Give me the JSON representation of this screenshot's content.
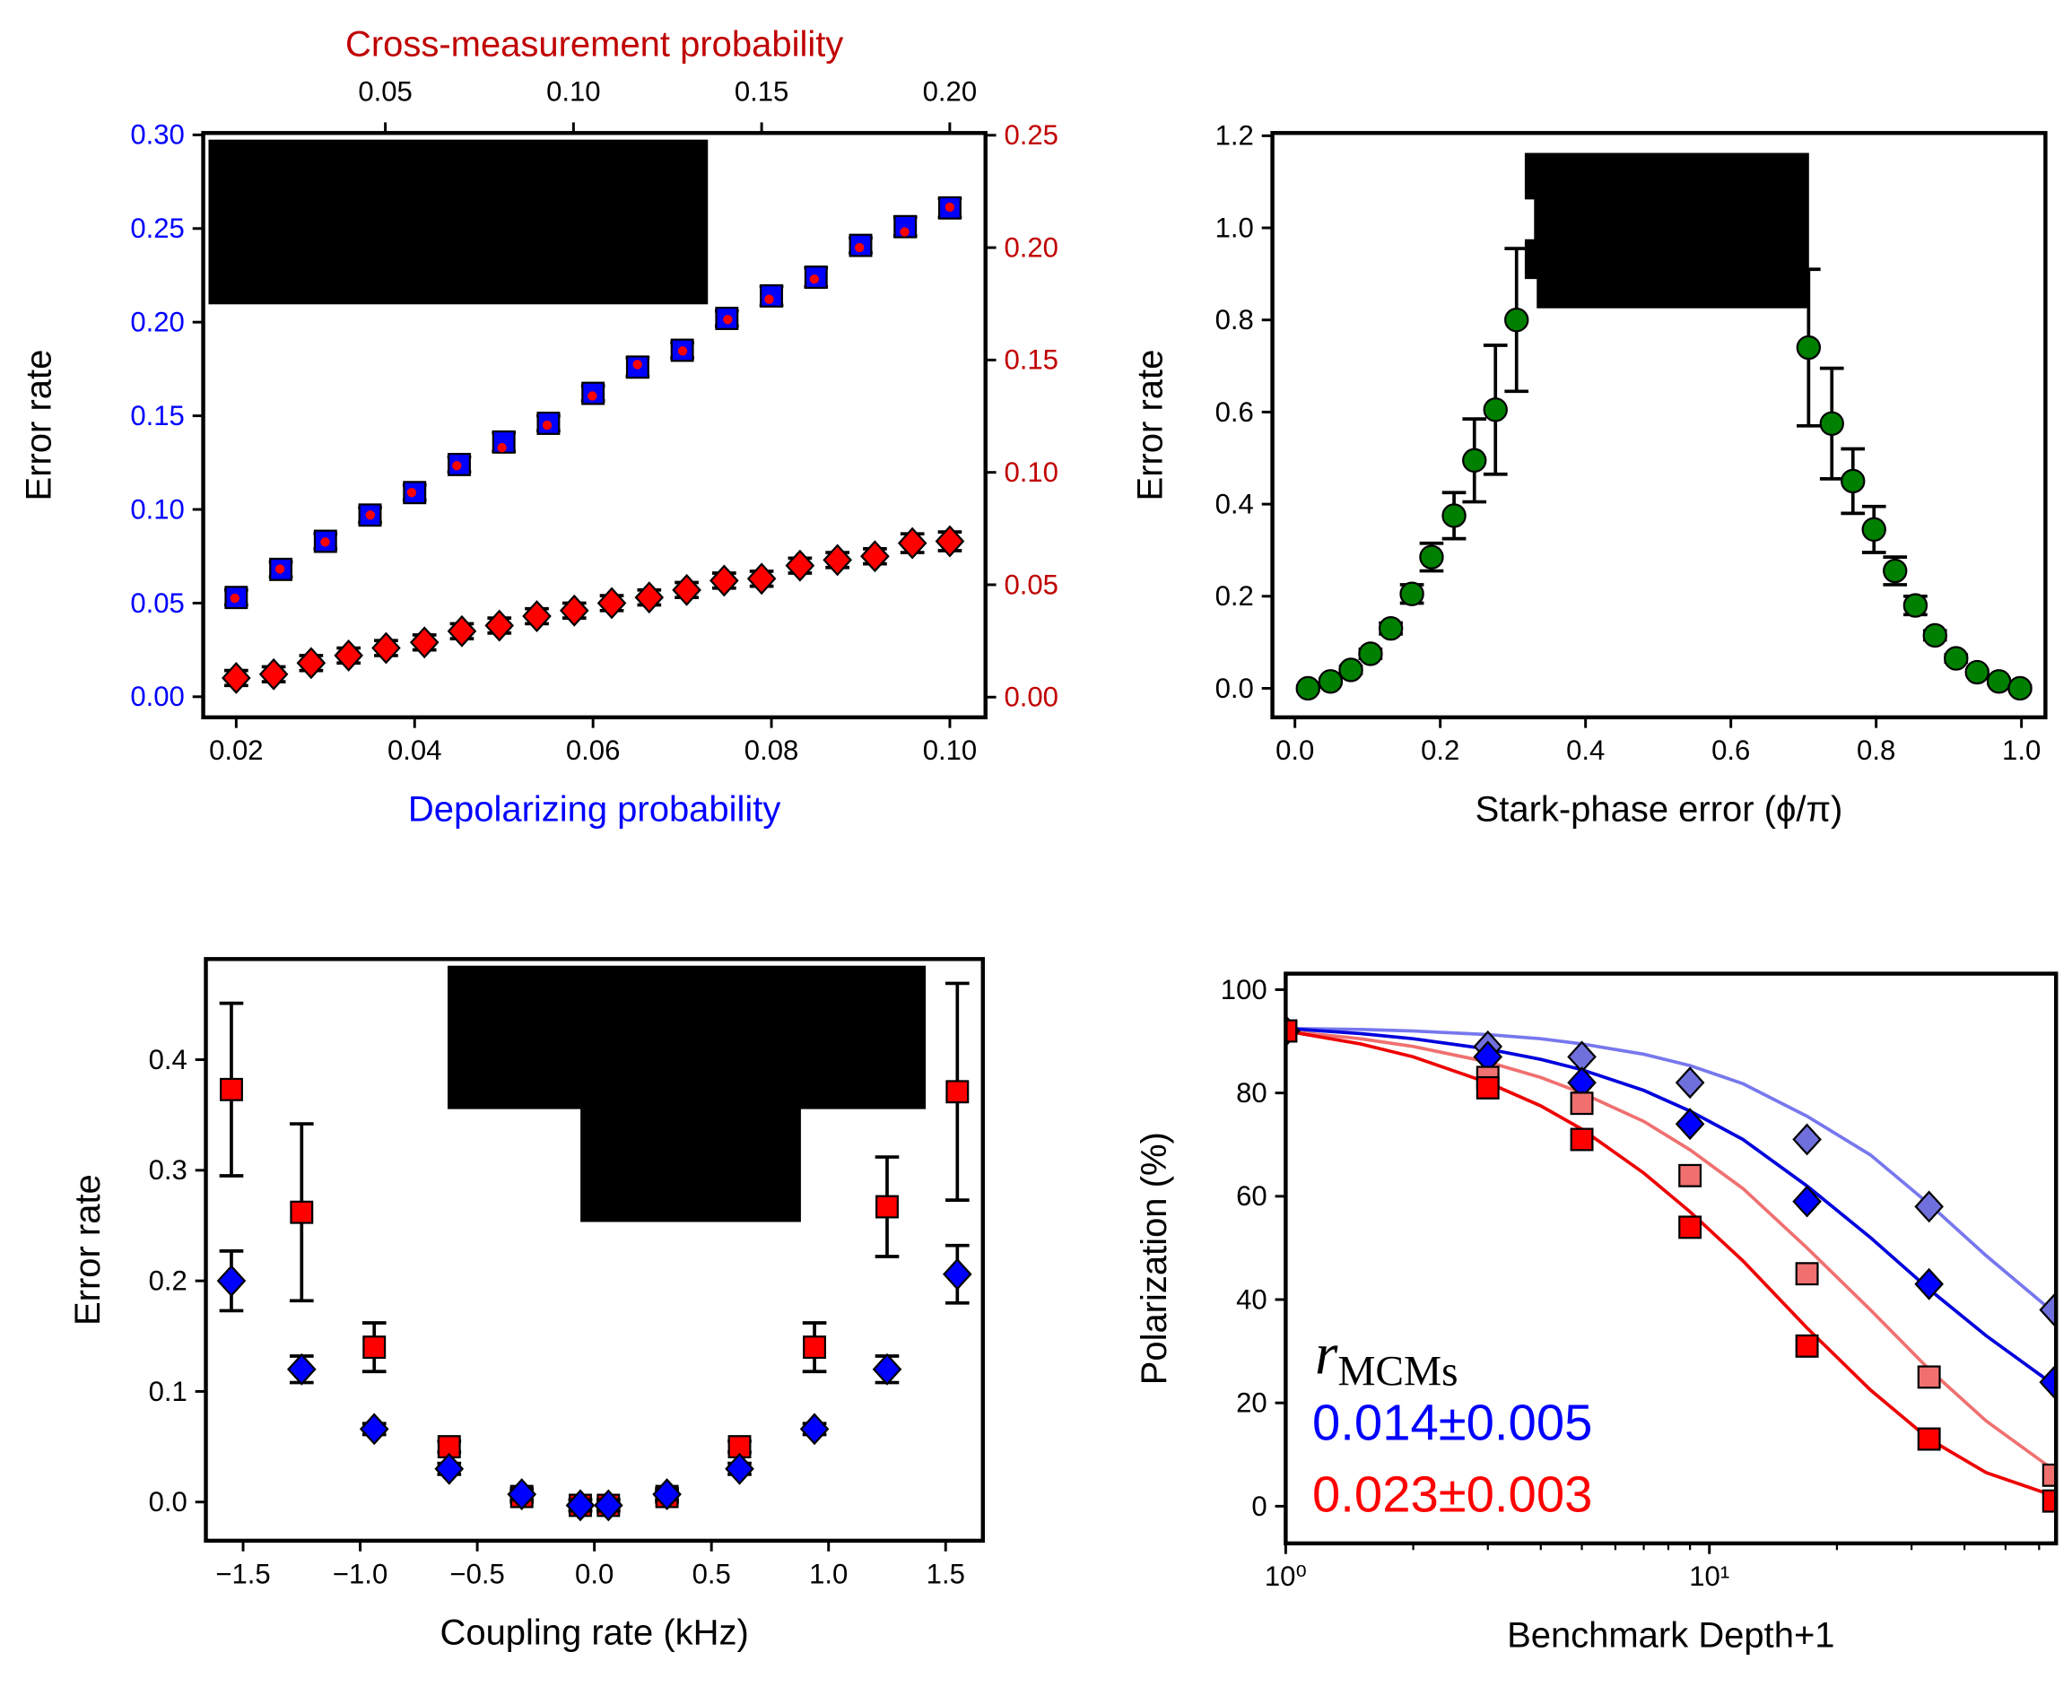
{
  "chart_data": [
    {
      "type": "scatter",
      "xlabel": "Depolarizing probability",
      "xlabel_color": "#0000ff",
      "x2label": "Cross-measurement probability",
      "x2label_color": "#c00000",
      "ylabel": "Error rate",
      "ytick_color": "#0000ff",
      "y2tick_color": "#c00000",
      "xlim": [
        0.0163,
        0.104
      ],
      "xticks": [
        0.02,
        0.04,
        0.06,
        0.08,
        {
          "value": 0.1,
          "label": "0.10"
        }
      ],
      "x2lim": [
        0.0016,
        0.2095
      ],
      "x2ticks": [
        0.05,
        {
          "value": 0.1,
          "label": "0.10"
        },
        0.15,
        {
          "value": 0.2,
          "label": "0.20"
        }
      ],
      "ylim": [
        -0.011,
        0.301
      ],
      "yticks": [
        {
          "value": 0,
          "label": "0.00"
        },
        0.05,
        {
          "value": 0.1,
          "label": "0.10"
        },
        0.15,
        {
          "value": 0.2,
          "label": "0.20"
        },
        0.25,
        {
          "value": 0.3,
          "label": "0.30"
        }
      ],
      "y2lim": [
        -0.009,
        0.251
      ],
      "y2ticks": [
        {
          "value": 0,
          "label": "0.00"
        },
        0.05,
        {
          "value": 0.1,
          "label": "0.10"
        },
        0.15,
        {
          "value": 0.2,
          "label": "0.20"
        },
        0.25
      ],
      "series": [
        {
          "marker": "square",
          "color": "#0000ff",
          "x": [
            0.02,
            0.025,
            0.03,
            0.035,
            0.04,
            0.045,
            0.05,
            0.055,
            0.06,
            0.065,
            0.07,
            0.075,
            0.08,
            0.085,
            0.09,
            0.095,
            0.1
          ],
          "values": [
            0.053,
            0.068,
            0.083,
            0.097,
            0.109,
            0.124,
            0.136,
            0.146,
            0.162,
            0.176,
            0.185,
            0.202,
            0.214,
            0.224,
            0.241,
            0.251,
            0.261
          ],
          "errors": [
            0.004,
            0.004,
            0.004,
            0.004,
            0.004,
            0.004,
            0.005,
            0.004,
            0.004,
            0.005,
            0.004,
            0.004,
            0.005,
            0.005,
            0.004,
            0.005,
            0.005
          ]
        },
        {
          "marker": "dot",
          "color": "#ff0000",
          "xaxis": "x2",
          "axis": "y2",
          "x": [
            0.01,
            0.022,
            0.034,
            0.046,
            0.057,
            0.069,
            0.081,
            0.093,
            0.105,
            0.117,
            0.129,
            0.141,
            0.152,
            0.164,
            0.176,
            0.188,
            0.2
          ],
          "values": [
            0.044,
            0.057,
            0.069,
            0.081,
            0.091,
            0.103,
            0.111,
            0.121,
            0.134,
            0.148,
            0.154,
            0.168,
            0.177,
            0.186,
            0.2,
            0.207,
            0.218
          ]
        },
        {
          "marker": "diamond",
          "color": "#ff0000",
          "x": [
            0.02,
            0.0242,
            0.0284,
            0.0326,
            0.0368,
            0.0411,
            0.0453,
            0.0495,
            0.0537,
            0.0579,
            0.0621,
            0.0663,
            0.0705,
            0.0747,
            0.0789,
            0.0832,
            0.0874,
            0.0916,
            0.0958,
            0.1
          ],
          "values": [
            0.01,
            0.012,
            0.018,
            0.022,
            0.026,
            0.029,
            0.035,
            0.038,
            0.043,
            0.046,
            0.05,
            0.053,
            0.057,
            0.062,
            0.063,
            0.07,
            0.073,
            0.075,
            0.082,
            0.083
          ],
          "errors": [
            0.004,
            0.004,
            0.004,
            0.004,
            0.004,
            0.004,
            0.004,
            0.004,
            0.004,
            0.004,
            0.004,
            0.004,
            0.004,
            0.004,
            0.004,
            0.004,
            0.004,
            0.004,
            0.005,
            0.005
          ]
        }
      ]
    },
    {
      "type": "scatter",
      "xlabel": "Stark-phase error (ϕ/π)",
      "ylabel": "Error rate",
      "xlim": [
        -0.031,
        1.033
      ],
      "xticks": [
        {
          "value": 0,
          "label": "0.0"
        },
        0.2,
        0.4,
        0.6,
        0.8,
        {
          "value": 1,
          "label": "1.0"
        }
      ],
      "ylim": [
        -0.063,
        1.206
      ],
      "yticks": [
        {
          "value": 0,
          "label": "0.0"
        },
        0.2,
        0.4,
        0.6,
        0.8,
        {
          "value": 1,
          "label": "1.0"
        },
        1.2
      ],
      "series": [
        {
          "marker": "circle",
          "color": "#008000",
          "x": [
            0.018,
            0.049,
            0.077,
            0.104,
            0.132,
            0.161,
            0.188,
            0.219,
            0.247,
            0.276,
            0.305,
            0.707,
            0.739,
            0.768,
            0.797,
            0.826,
            0.854,
            0.881,
            0.91,
            0.939,
            0.969,
            0.998
          ],
          "values": [
            0,
            0.015,
            0.04,
            0.075,
            0.13,
            0.205,
            0.285,
            0.375,
            0.495,
            0.605,
            0.8,
            0.74,
            0.575,
            0.45,
            0.345,
            0.255,
            0.18,
            0.115,
            0.065,
            0.035,
            0.015,
            0
          ],
          "errors": [
            0.005,
            0.005,
            0.008,
            0.01,
            0.012,
            0.02,
            0.03,
            0.05,
            0.09,
            0.14,
            0.155,
            0.17,
            0.12,
            0.07,
            0.05,
            0.03,
            0.02,
            0.01,
            0.008,
            0.005,
            0.005,
            0.005
          ]
        }
      ]
    },
    {
      "type": "scatter",
      "xlabel": "Coupling rate (kHz)",
      "ylabel": "Error rate",
      "xlim": [
        -1.659,
        1.659
      ],
      "xticks": [
        {
          "value": -1.5,
          "label": "−1.5"
        },
        {
          "value": -1,
          "label": "−1.0"
        },
        {
          "value": -0.5,
          "label": "−0.5"
        },
        {
          "value": 0,
          "label": "0.0"
        },
        0.5,
        {
          "value": 1,
          "label": "1.0"
        },
        1.5
      ],
      "ylim": [
        -0.035,
        0.491
      ],
      "yticks": [
        {
          "value": 0,
          "label": "0.0"
        },
        0.1,
        0.2,
        0.3,
        0.4
      ],
      "series": [
        {
          "marker": "square",
          "color": "#ff0000",
          "x": [
            -1.55,
            -1.25,
            -0.94,
            -0.62,
            -0.31,
            -0.06,
            0.06,
            0.31,
            0.62,
            0.94,
            1.25,
            1.55
          ],
          "values": [
            0.373,
            0.262,
            0.14,
            0.05,
            0.005,
            -0.003,
            -0.003,
            0.005,
            0.05,
            0.14,
            0.267,
            0.371
          ],
          "errors": [
            0.078,
            0.08,
            0.022,
            0.005,
            0.005,
            0.005,
            0.005,
            0.005,
            0.005,
            0.022,
            0.045,
            0.098
          ]
        },
        {
          "marker": "diamond",
          "color": "#0000ff",
          "x": [
            -1.55,
            -1.25,
            -0.94,
            -0.62,
            -0.31,
            -0.06,
            0.06,
            0.31,
            0.62,
            0.94,
            1.25,
            1.55
          ],
          "values": [
            0.2,
            0.12,
            0.066,
            0.03,
            0.007,
            -0.003,
            -0.003,
            0.007,
            0.03,
            0.066,
            0.12,
            0.206
          ],
          "errors": [
            0.027,
            0.012,
            0.005,
            0.005,
            0.005,
            0.005,
            0.005,
            0.005,
            0.005,
            0.005,
            0.012,
            0.026
          ]
        }
      ]
    },
    {
      "type": "scatter",
      "xlabel": "Benchmark Depth+1",
      "ylabel": "Polarization (%)",
      "xscale": "log",
      "xlim": [
        1,
        65.8
      ],
      "xticks": [
        {
          "value": 1,
          "label": "10⁰"
        },
        {
          "value": 10,
          "label": "10¹"
        }
      ],
      "xminorticks": [
        2,
        3,
        4,
        5,
        6,
        7,
        8,
        9,
        20,
        30,
        40,
        50,
        60
      ],
      "ylim": [
        -7.2,
        103.1
      ],
      "yticks": [
        0,
        20,
        40,
        60,
        80,
        100
      ],
      "annotation_symbol": "r",
      "annotation_subscript": "MCMs",
      "annotations": [
        {
          "text": "0.014±0.005",
          "color": "#0000ff"
        },
        {
          "text": "0.023±0.003",
          "color": "#ff0000"
        }
      ],
      "series": [
        {
          "style": "line",
          "color": "#7777ee",
          "x": [
            1,
            1.5,
            2,
            3,
            4,
            5,
            7,
            9,
            12,
            17,
            24,
            33,
            45,
            65
          ],
          "values": [
            92.5,
            92.3,
            92,
            91.3,
            90.5,
            89.5,
            87.5,
            85.3,
            81.8,
            75.5,
            68,
            58.5,
            48.5,
            37.5
          ]
        },
        {
          "style": "line",
          "color": "#0000dd",
          "x": [
            1,
            1.5,
            2,
            3,
            4,
            5,
            7,
            9,
            12,
            17,
            24,
            33,
            45,
            65
          ],
          "values": [
            92.5,
            91.5,
            90.5,
            88.5,
            86.5,
            84.5,
            80.5,
            76.5,
            71,
            62,
            52,
            42,
            33,
            23.5
          ]
        },
        {
          "style": "line",
          "color": "#f07070",
          "x": [
            1,
            1.5,
            2,
            3,
            4,
            5,
            7,
            9,
            12,
            17,
            24,
            33,
            45,
            65
          ],
          "values": [
            92,
            90.5,
            89,
            86,
            83,
            80,
            74.5,
            69,
            61.5,
            50,
            38,
            26.5,
            16.5,
            7
          ]
        },
        {
          "style": "line",
          "color": "#ee0000",
          "x": [
            1,
            1.5,
            2,
            3,
            4,
            5,
            7,
            9,
            12,
            17,
            24,
            33,
            45,
            65
          ],
          "values": [
            92,
            89.5,
            87,
            82,
            77.5,
            73,
            64.5,
            57,
            47.5,
            34.5,
            22.5,
            13,
            6.5,
            2
          ]
        },
        {
          "marker": "diamond",
          "color": "#7070dd",
          "x": [
            1,
            3,
            5,
            9,
            17,
            33,
            65
          ],
          "values": [
            92,
            89,
            87,
            82,
            71,
            58,
            38
          ]
        },
        {
          "marker": "diamond",
          "color": "#0000ff",
          "x": [
            1,
            3,
            5,
            9,
            17,
            33,
            65
          ],
          "values": [
            92,
            87,
            82,
            74,
            59,
            43,
            24
          ]
        },
        {
          "marker": "square",
          "color": "#f07070",
          "x": [
            1,
            3,
            5,
            9,
            17,
            33,
            65
          ],
          "values": [
            92,
            83,
            78,
            64,
            45,
            25,
            6
          ]
        },
        {
          "marker": "square",
          "color": "#ff0000",
          "x": [
            1,
            3,
            5,
            9,
            17,
            33,
            65
          ],
          "values": [
            92,
            81,
            71,
            54,
            31,
            13,
            1
          ]
        }
      ]
    }
  ]
}
